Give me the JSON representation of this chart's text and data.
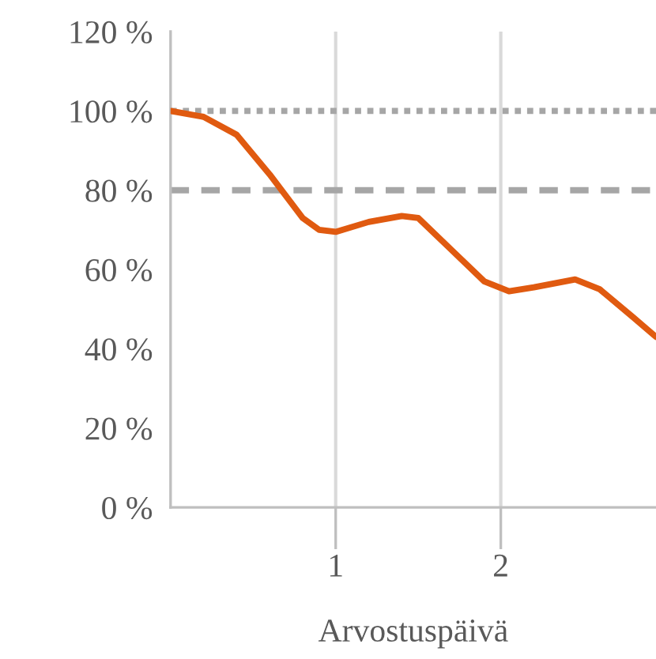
{
  "chart_data": {
    "type": "line",
    "xlabel": "Arvostuspäivä",
    "x": [
      0,
      0.2,
      0.4,
      0.6,
      0.8,
      0.9,
      1.0,
      1.2,
      1.4,
      1.5,
      1.7,
      1.9,
      2.05,
      2.2,
      2.45,
      2.6,
      2.8,
      2.94
    ],
    "series": [
      {
        "color": "#e05a10",
        "values": [
          100,
          98.5,
          94,
          84,
          73,
          70,
          69.5,
          72,
          73.5,
          73,
          65,
          57,
          54.5,
          55.5,
          57.5,
          55,
          48,
          43
        ]
      }
    ],
    "xlim": [
      0,
      2.94
    ],
    "xticks": [
      1,
      2
    ],
    "ylim": [
      0,
      120
    ],
    "yticks": [
      {
        "value": 0,
        "label": "0 %"
      },
      {
        "value": 20,
        "label": "20 %"
      },
      {
        "value": 40,
        "label": "40 %"
      },
      {
        "value": 60,
        "label": "60 %"
      },
      {
        "value": 80,
        "label": "80 %"
      },
      {
        "value": 100,
        "label": "100 %"
      },
      {
        "value": 120,
        "label": "120 %"
      }
    ],
    "ref_lines": [
      {
        "axis": "y",
        "value": 100,
        "color": "#a6a6a6",
        "line_style": "dotted"
      },
      {
        "axis": "y",
        "value": 80,
        "color": "#a6a6a6",
        "line_style": "dashed"
      }
    ],
    "grid": "x",
    "marker": "none",
    "line_style": "solid",
    "legend": false
  }
}
